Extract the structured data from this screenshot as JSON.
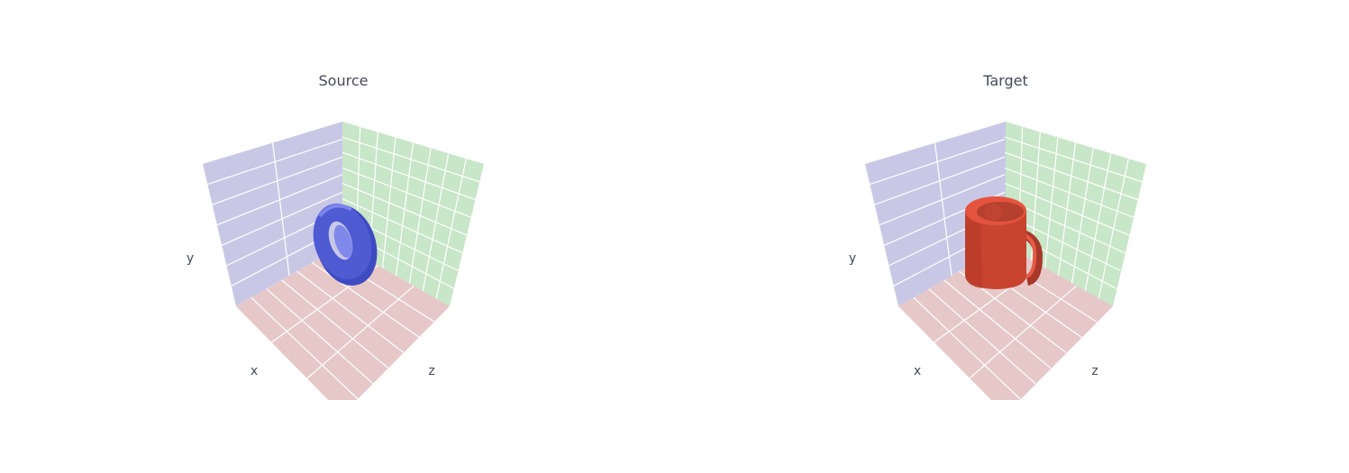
{
  "chart_data": [
    {
      "type": "mesh3d",
      "title": "Source",
      "axes": {
        "xlabel": "x",
        "ylabel": "y",
        "zlabel": "z"
      },
      "grid": true,
      "pane_colors": {
        "xy_wall": "#c8c8e6",
        "yz_wall": "#c8e6c8",
        "floor": "#e6c8c8"
      },
      "object": {
        "shape": "torus",
        "color": "#4e5bd3"
      }
    },
    {
      "type": "mesh3d",
      "title": "Target",
      "axes": {
        "xlabel": "x",
        "ylabel": "y",
        "zlabel": "z"
      },
      "grid": true,
      "pane_colors": {
        "xy_wall": "#c8c8e6",
        "yz_wall": "#c8e6c8",
        "floor": "#e6c8c8"
      },
      "object": {
        "shape": "mug",
        "color": "#c9442f"
      }
    }
  ]
}
